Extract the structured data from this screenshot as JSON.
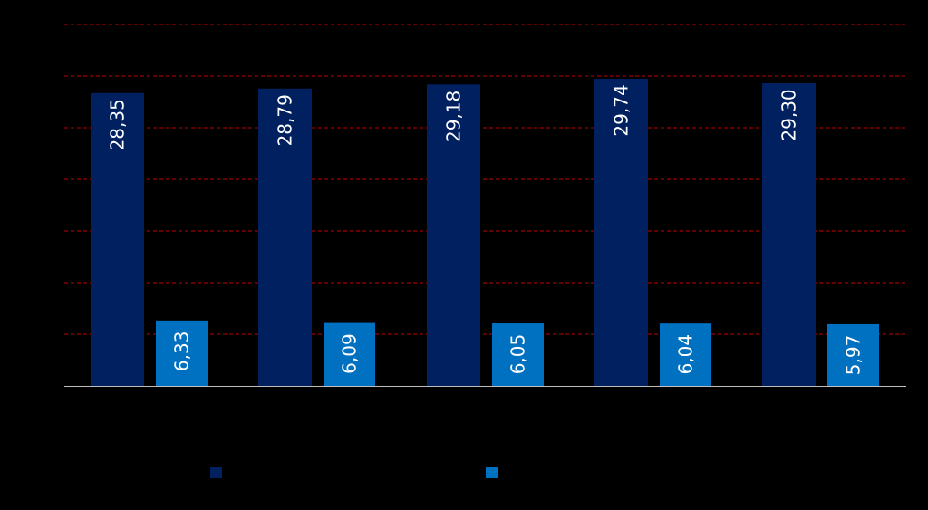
{
  "chart_data": {
    "type": "bar",
    "title": "",
    "xlabel": "",
    "ylabel": "",
    "categories": [
      "",
      "",
      "",
      "",
      ""
    ],
    "ylim": [
      0,
      35
    ],
    "gridlines": [
      5,
      10,
      15,
      20,
      25,
      30,
      35
    ],
    "grid": true,
    "legend_placement": "bottom",
    "series": [
      {
        "color": "#002060",
        "values": [
          28.35,
          28.79,
          29.18,
          29.74,
          29.3
        ],
        "labels": [
          "28,35",
          "28,79",
          "29,18",
          "29,74",
          "29,30"
        ]
      },
      {
        "color": "#0070C0",
        "values": [
          6.33,
          6.09,
          6.05,
          6.04,
          5.97
        ],
        "labels": [
          "6,33",
          "6,09",
          "6,05",
          "6,04",
          "5,97"
        ]
      }
    ]
  },
  "colors": {
    "background": "#000000",
    "gridline": "#C00000",
    "axis": "#BFBFBF",
    "label_text": "#FFFFFF"
  }
}
